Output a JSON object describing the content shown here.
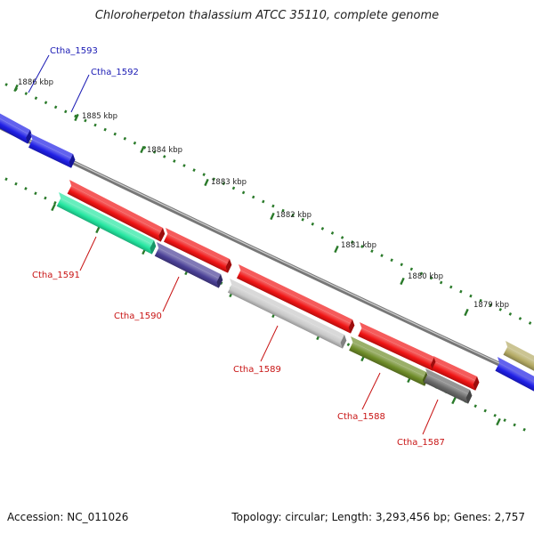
{
  "title": "Chloroherpeton thalassium ATCC 35110, complete genome",
  "accession": "Accession: NC_011026",
  "summary": "Topology: circular; Length: 3,293,456 bp; Genes: 2,757",
  "colors": {
    "backbone": "#777777",
    "tick": "#2a7a2a",
    "label_forward": "#1a1ab4",
    "label_reverse": "#c81414",
    "label_tick": "#222222"
  },
  "ticks": [
    {
      "label": "1886 kbp"
    },
    {
      "label": "1885 kbp"
    },
    {
      "label": "1884 kbp"
    },
    {
      "label": "1883 kbp"
    },
    {
      "label": "1882 kbp"
    },
    {
      "label": "1881 kbp"
    },
    {
      "label": "1880 kbp"
    },
    {
      "label": "1879 kbp"
    }
  ],
  "genes": [
    {
      "label": "Ctha_1593",
      "strand": "forward",
      "color": "#1f1fe6"
    },
    {
      "label": "Ctha_1592",
      "strand": "forward",
      "color": "#1f1fe6"
    },
    {
      "label": "Ctha_1591",
      "strand": "reverse",
      "color": "#24e6a0"
    },
    {
      "label": "Ctha_1590",
      "strand": "reverse",
      "color": "#4a4096"
    },
    {
      "label": "Ctha_1589",
      "strand": "reverse",
      "color": "#c8c8c8"
    },
    {
      "label": "Ctha_1588",
      "strand": "reverse",
      "color": "#6e8c28"
    },
    {
      "label": "Ctha_1587",
      "strand": "reverse",
      "color": "#686868"
    }
  ],
  "unlabeled_genes": [
    {
      "color": "#f01414"
    },
    {
      "color": "#1f1fe6"
    },
    {
      "color": "#b4aa64"
    }
  ]
}
